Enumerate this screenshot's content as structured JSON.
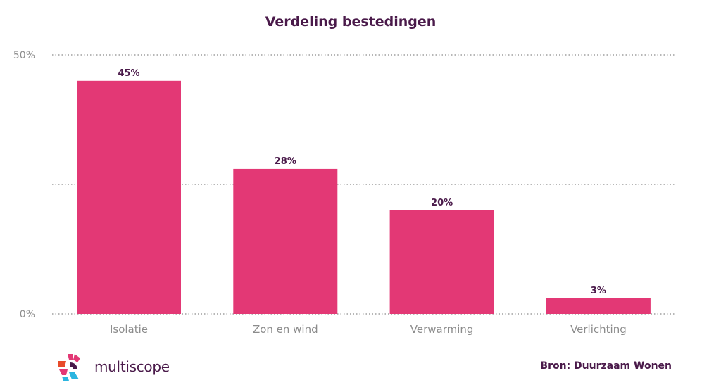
{
  "colors": {
    "bar": "#E33875",
    "title": "#4A1A4A",
    "data_label": "#4A1A4A",
    "axis_label": "#8C8C8C",
    "grid": "#8C8C8C",
    "logo_text": "#4A1A4A",
    "source": "#4A1A4A"
  },
  "chart_data": {
    "type": "bar",
    "title": "Verdeling bestedingen",
    "categories": [
      "Isolatie",
      "Zon en wind",
      "Verwarming",
      "Verlichting"
    ],
    "values": [
      45,
      28,
      20,
      3
    ],
    "data_labels": [
      "45%",
      "28%",
      "20%",
      "3%"
    ],
    "ylim": [
      0,
      50
    ],
    "gridlines": [
      0,
      25,
      50
    ],
    "y_tick_labels": [
      {
        "value": 50,
        "label": "50%"
      },
      {
        "value": 0,
        "label": "0%"
      }
    ],
    "xlabel": "",
    "ylabel": "",
    "grid": true,
    "grid_style": "dotted"
  },
  "footer": {
    "logo_icon": "multiscope-logo-icon",
    "logo_text": "multiscope",
    "source": "Bron: Duurzaam Wonen"
  }
}
